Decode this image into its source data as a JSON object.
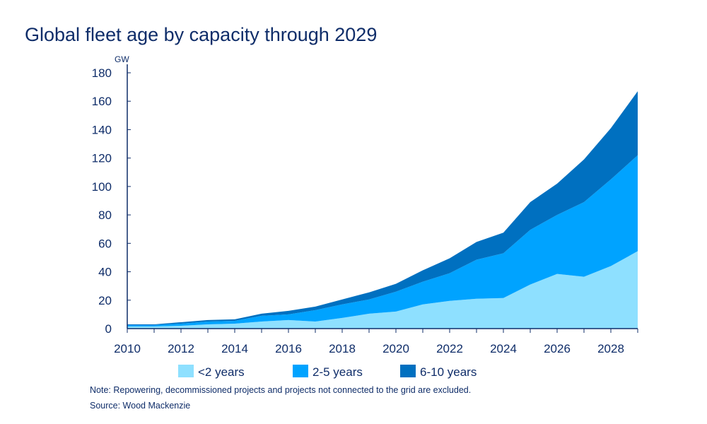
{
  "title": "Global fleet age by capacity through 2029",
  "note": "Note: Repowering, decommissioned projects and projects not connected to the grid are excluded.",
  "source": "Source: Wood Mackenzie",
  "chart_data": {
    "type": "area",
    "stacked": true,
    "title": "Global fleet age by capacity through 2029",
    "ylabel": "GW",
    "xlabel": "",
    "ylim": [
      0,
      180
    ],
    "yticks": [
      0,
      20,
      40,
      60,
      80,
      100,
      120,
      140,
      160,
      180
    ],
    "xtick_labels": [
      "2010",
      "2012",
      "2014",
      "2016",
      "2018",
      "2020",
      "2022",
      "2024",
      "2026",
      "2028"
    ],
    "x": [
      2010,
      2011,
      2012,
      2013,
      2014,
      2015,
      2016,
      2017,
      2018,
      2019,
      2020,
      2021,
      2022,
      2023,
      2024,
      2025,
      2026,
      2027,
      2028,
      2029
    ],
    "legend_placement": "bottom",
    "grid": false,
    "series": [
      {
        "name": "<2 years",
        "color": "#8ee0ff",
        "values": [
          1.5,
          1.5,
          2,
          3,
          3.5,
          5,
          6,
          5,
          7.5,
          10.5,
          12,
          17,
          19.5,
          21,
          21.5,
          31,
          38.5,
          36.5,
          44,
          54.5
        ]
      },
      {
        "name": "2-5 years",
        "color": "#00a3ff",
        "values": [
          1,
          1,
          1.5,
          2,
          2,
          4,
          4,
          8,
          9.5,
          10,
          14,
          16,
          19.5,
          27.5,
          31.5,
          38.5,
          41.5,
          52.5,
          61,
          67.5
        ]
      },
      {
        "name": "6-10 years",
        "color": "#0070c0",
        "values": [
          0.5,
          0.5,
          1,
          1,
          1,
          1.5,
          2.5,
          2.5,
          3.5,
          5,
          5.5,
          8,
          10.5,
          12.5,
          14.5,
          19.5,
          22,
          30,
          36,
          45
        ]
      }
    ]
  }
}
